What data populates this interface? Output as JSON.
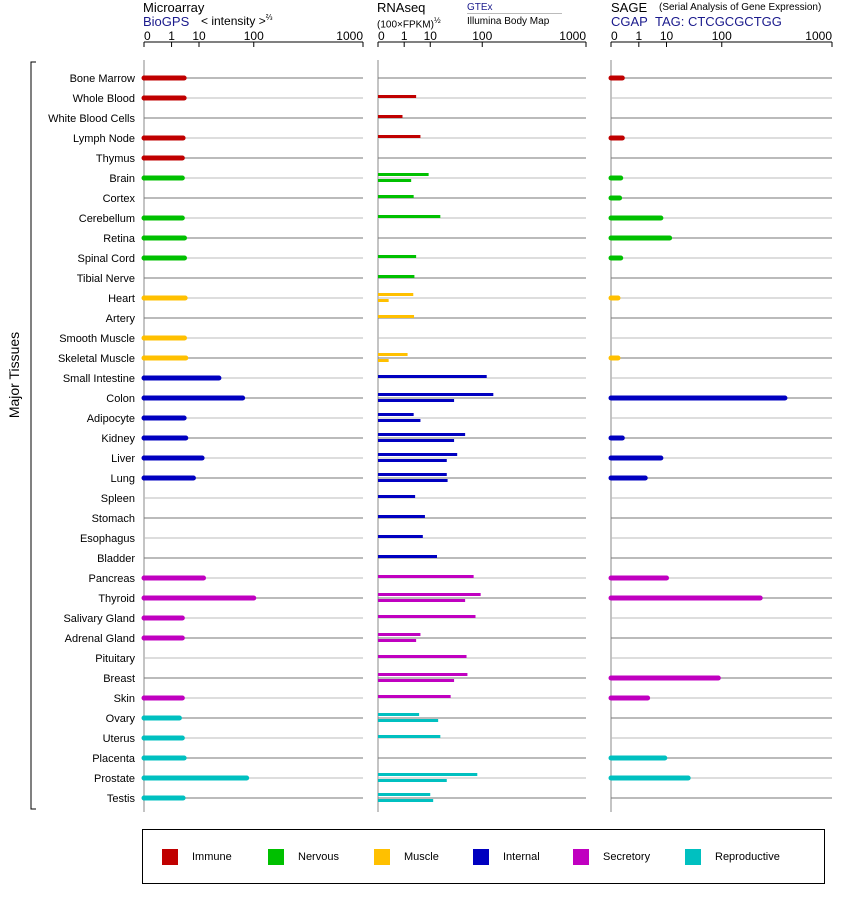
{
  "headers": {
    "microarray": {
      "title": "Microarray",
      "link": "BioGPS",
      "scale_label": "< intensity >",
      "scale_exp": "⅔"
    },
    "rnaseq": {
      "title": "RNAseq",
      "unit": "(100×FPKM)",
      "unit_exp": "½",
      "source_link": "GTEx",
      "source2": "Illumina Body Map"
    },
    "sage": {
      "title": "SAGE",
      "subtitle": "(Serial Analysis of Gene Expression)",
      "link": "CGAP",
      "tag": "TAG: CTCGCGCTGG"
    }
  },
  "side_label": "Major Tissues",
  "legend": [
    {
      "label": "Immune",
      "color": "#c00000"
    },
    {
      "label": "Nervous",
      "color": "#00c000"
    },
    {
      "label": "Muscle",
      "color": "#ffc000"
    },
    {
      "label": "Internal",
      "color": "#0000c0"
    },
    {
      "label": "Secretory",
      "color": "#c000c0"
    },
    {
      "label": "Reproductive",
      "color": "#00c0c0"
    }
  ],
  "chart_data": {
    "type": "bar",
    "axis_ticks": [
      "0",
      "1",
      "10",
      "100",
      "1000"
    ],
    "xlim": [
      0,
      1000
    ],
    "scale": "power",
    "panels": [
      "Microarray",
      "RNAseq",
      "SAGE"
    ],
    "tissues": [
      {
        "name": "Bone Marrow",
        "group": "Immune",
        "micro": 3.5,
        "rna": [],
        "sage": 0.05
      },
      {
        "name": "Whole Blood",
        "group": "Immune",
        "micro": 3.5,
        "rna": [
          3.5
        ],
        "sage": null
      },
      {
        "name": "White Blood Cells",
        "group": "Immune",
        "micro": null,
        "rna": [
          0.8
        ],
        "sage": null
      },
      {
        "name": "Lymph Node",
        "group": "Immune",
        "micro": 3.2,
        "rna": [
          5
        ],
        "sage": 0.05
      },
      {
        "name": "Thymus",
        "group": "Immune",
        "micro": 3.0,
        "rna": [],
        "sage": null
      },
      {
        "name": "Brain",
        "group": "Nervous",
        "micro": 3.0,
        "rna": [
          9,
          2.2
        ],
        "sage": 0.03
      },
      {
        "name": "Cortex",
        "group": "Nervous",
        "micro": null,
        "rna": [
          2.8
        ],
        "sage": 0.02
      },
      {
        "name": "Cerebellum",
        "group": "Nervous",
        "micro": 3.0,
        "rna": [
          18
        ],
        "sage": 7
      },
      {
        "name": "Retina",
        "group": "Nervous",
        "micro": 3.6,
        "rna": [],
        "sage": 12
      },
      {
        "name": "Spinal Cord",
        "group": "Nervous",
        "micro": 3.6,
        "rna": [
          3.5
        ],
        "sage": 0.03
      },
      {
        "name": "Tibial Nerve",
        "group": "Nervous",
        "micro": null,
        "rna": [
          3
        ],
        "sage": null
      },
      {
        "name": "Heart",
        "group": "Muscle",
        "micro": 3.8,
        "rna": [
          2.7,
          0.05
        ],
        "sage": 0.01
      },
      {
        "name": "Artery",
        "group": "Muscle",
        "micro": null,
        "rna": [
          2.9
        ],
        "sage": null
      },
      {
        "name": "Smooth Muscle",
        "group": "Muscle",
        "micro": 3.6,
        "rna": [],
        "sage": null
      },
      {
        "name": "Skeletal Muscle",
        "group": "Muscle",
        "micro": 4.0,
        "rna": [
          1.5,
          0.05
        ],
        "sage": 0.01
      },
      {
        "name": "Small Intestine",
        "group": "Internal",
        "micro": 28,
        "rna": [
          115
        ],
        "sage": null
      },
      {
        "name": "Colon",
        "group": "Internal",
        "micro": 70,
        "rna": [
          140,
          35
        ],
        "sage": 450
      },
      {
        "name": "Adipocyte",
        "group": "Internal",
        "micro": 3.5,
        "rna": [
          2.8,
          5
        ],
        "sage": null
      },
      {
        "name": "Kidney",
        "group": "Internal",
        "micro": 4.0,
        "rna": [
          55,
          35
        ],
        "sage": 0.05
      },
      {
        "name": "Liver",
        "group": "Internal",
        "micro": 12,
        "rna": [
          40,
          25
        ],
        "sage": 7
      },
      {
        "name": "Lung",
        "group": "Internal",
        "micro": 7,
        "rna": [
          25,
          26
        ],
        "sage": 2.0
      },
      {
        "name": "Spleen",
        "group": "Internal",
        "micro": null,
        "rna": [
          3.2
        ],
        "sage": null
      },
      {
        "name": "Stomach",
        "group": "Internal",
        "micro": null,
        "rna": [
          7
        ],
        "sage": null
      },
      {
        "name": "Esophagus",
        "group": "Internal",
        "micro": null,
        "rna": [
          6
        ],
        "sage": null
      },
      {
        "name": "Bladder",
        "group": "Internal",
        "micro": null,
        "rna": [
          15
        ],
        "sage": null
      },
      {
        "name": "Pancreas",
        "group": "Secretory",
        "micro": 13,
        "rna": [
          75
        ],
        "sage": 10
      },
      {
        "name": "Thyroid",
        "group": "Secretory",
        "micro": 100,
        "rna": [
          95,
          55
        ],
        "sage": 270
      },
      {
        "name": "Salivary Gland",
        "group": "Secretory",
        "micro": 3.0,
        "rna": [
          80
        ],
        "sage": null
      },
      {
        "name": "Adrenal Gland",
        "group": "Secretory",
        "micro": 3.0,
        "rna": [
          5,
          3.5
        ],
        "sage": null
      },
      {
        "name": "Pituitary",
        "group": "Secretory",
        "micro": null,
        "rna": [
          58
        ],
        "sage": null
      },
      {
        "name": "Breast",
        "group": "Secretory",
        "micro": null,
        "rna": [
          60,
          35
        ],
        "sage": 90
      },
      {
        "name": "Skin",
        "group": "Secretory",
        "micro": 3.0,
        "rna": [
          30
        ],
        "sage": 2.5
      },
      {
        "name": "Ovary",
        "group": "Reproductive",
        "micro": 2.3,
        "rna": [
          4.5,
          16
        ],
        "sage": null
      },
      {
        "name": "Uterus",
        "group": "Reproductive",
        "micro": 3.0,
        "rna": [
          18
        ],
        "sage": null
      },
      {
        "name": "Placenta",
        "group": "Reproductive",
        "micro": 3.5,
        "rna": [],
        "sage": 9
      },
      {
        "name": "Prostate",
        "group": "Reproductive",
        "micro": 80,
        "rna": [
          85,
          25
        ],
        "sage": 30
      },
      {
        "name": "Testis",
        "group": "Reproductive",
        "micro": 3.2,
        "rna": [
          10,
          12
        ],
        "sage": null
      }
    ]
  }
}
